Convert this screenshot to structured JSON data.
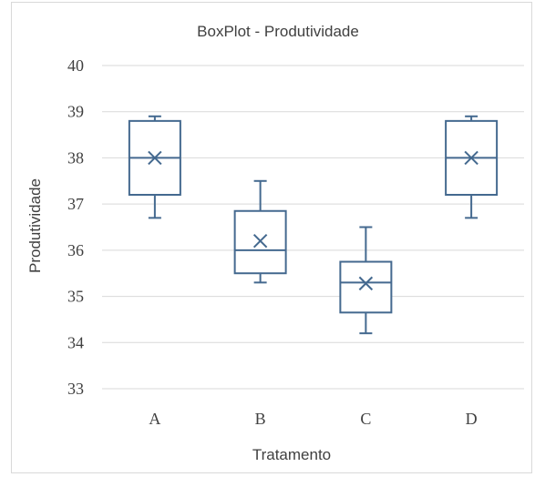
{
  "chart_data": {
    "type": "box",
    "title": "BoxPlot - Produtividade",
    "xlabel": "Tratamento",
    "ylabel": "Produtividade",
    "ylim": [
      33,
      40
    ],
    "yticks": [
      33,
      34,
      35,
      36,
      37,
      38,
      39,
      40
    ],
    "grid": true,
    "categories": [
      "A",
      "B",
      "C",
      "D"
    ],
    "boxes": [
      {
        "category": "A",
        "min": 36.7,
        "q1": 37.2,
        "median": 38.0,
        "q3": 38.8,
        "max": 38.9,
        "mean": 38.0
      },
      {
        "category": "B",
        "min": 35.3,
        "q1": 35.5,
        "median": 36.0,
        "q3": 36.85,
        "max": 37.5,
        "mean": 36.2
      },
      {
        "category": "C",
        "min": 34.2,
        "q1": 34.65,
        "median": 35.3,
        "q3": 35.75,
        "max": 36.5,
        "mean": 35.28
      },
      {
        "category": "D",
        "min": 36.7,
        "q1": 37.2,
        "median": 38.0,
        "q3": 38.8,
        "max": 38.9,
        "mean": 38.0
      }
    ]
  }
}
